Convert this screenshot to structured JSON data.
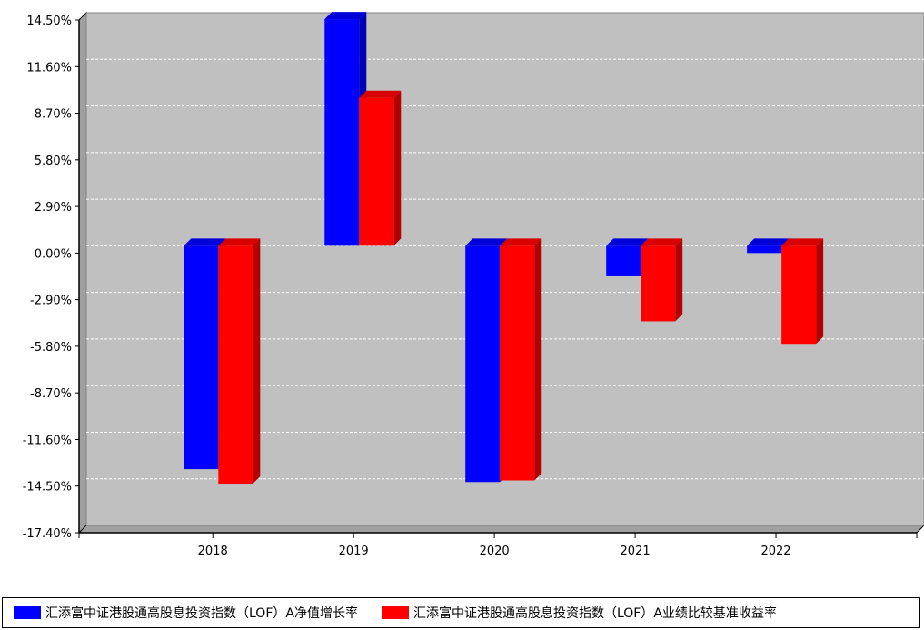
{
  "chart_data": {
    "type": "bar",
    "categories": [
      "2018",
      "2019",
      "2020",
      "2021",
      "2022"
    ],
    "series": [
      {
        "name": "汇添富中证港股通高股息投资指数（LOF）A净值增长率",
        "color": "#0000ff",
        "values": [
          -13.9,
          14.1,
          -14.7,
          -1.9,
          -0.45
        ]
      },
      {
        "name": "汇添富中证港股通高股息投资指数（LOF）A业绩比较基准收益率",
        "color": "#ff0000",
        "values": [
          -14.8,
          9.2,
          -14.6,
          -4.7,
          -6.1
        ]
      }
    ],
    "yticks": [
      "14.50%",
      "11.60%",
      "8.70%",
      "5.80%",
      "2.90%",
      "0.00%",
      "-2.90%",
      "-5.80%",
      "-8.70%",
      "-11.60%",
      "-14.50%",
      "-17.40%"
    ],
    "ylim": [
      -17.4,
      14.5
    ],
    "grid": true,
    "legend_position": "bottom",
    "background_color": "#c0c0c0"
  }
}
